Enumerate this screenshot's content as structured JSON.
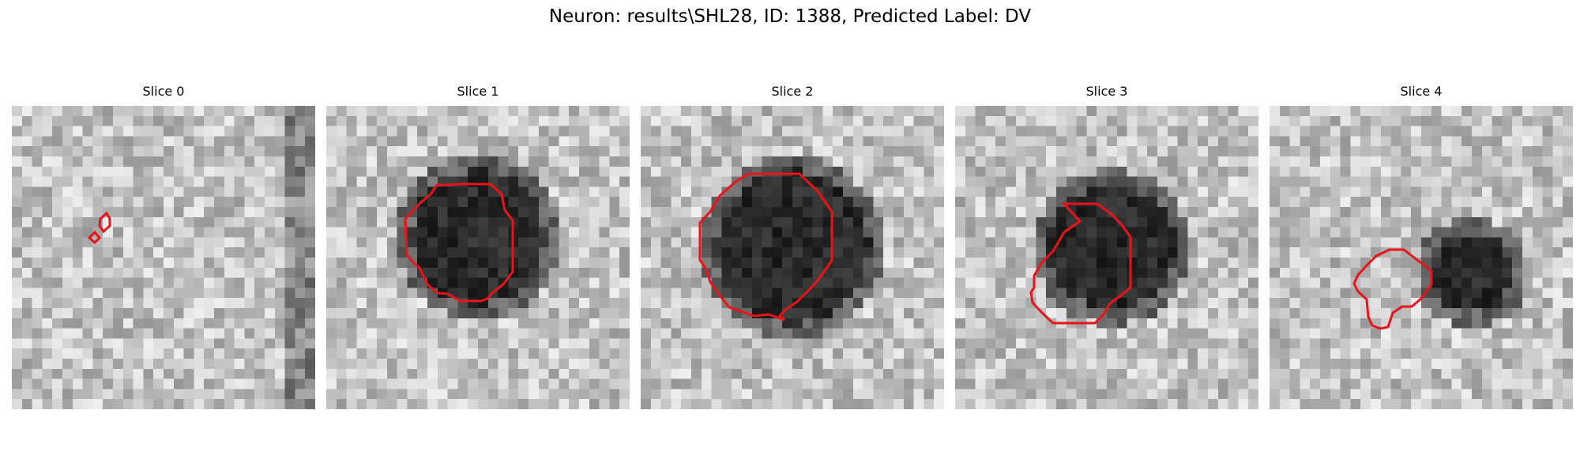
{
  "figure": {
    "title": "Neuron: results\\SHL28, ID: 1388, Predicted Label: DV",
    "contour_color": "#e8141a",
    "image_colormap": "gray",
    "slices": [
      {
        "label": "Slice 0",
        "dark_region": "none",
        "contour": "tiny-markers"
      },
      {
        "label": "Slice 1",
        "dark_region": "center",
        "contour": "roundish"
      },
      {
        "label": "Slice 2",
        "dark_region": "center",
        "contour": "roundish"
      },
      {
        "label": "Slice 3",
        "dark_region": "center",
        "contour": "roundish"
      },
      {
        "label": "Slice 4",
        "dark_region": "right-of-center",
        "contour": "small-irregular"
      }
    ]
  }
}
